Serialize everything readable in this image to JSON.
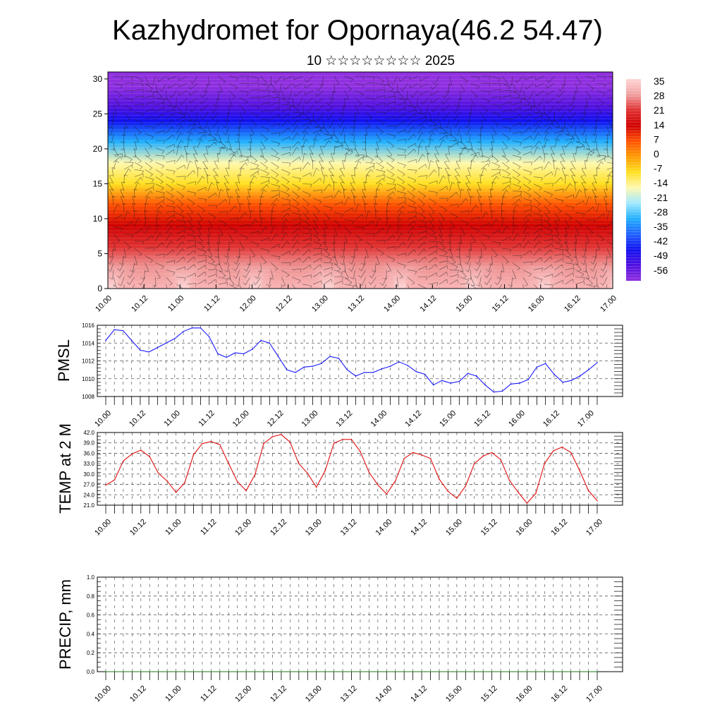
{
  "title": "Kazhydromet for Opornaya(46.2 54.47)",
  "subtitle": "10 ☆☆☆☆☆☆☆☆ 2025",
  "time_ticks": [
    "10.00",
    "10.12",
    "11.00",
    "11.12",
    "12.00",
    "12.12",
    "13.00",
    "13.12",
    "14.00",
    "14.12",
    "15.00",
    "15.12",
    "16.00",
    "16.12",
    "17.00"
  ],
  "chart_data": [
    {
      "type": "heatmap",
      "panel": "temperature cross-section with wind barbs",
      "y_ticks": [
        "0",
        "5",
        "10",
        "15",
        "20",
        "25",
        "30"
      ],
      "ylim": [
        0,
        31
      ],
      "colorbar": {
        "labels": [
          "35",
          "28",
          "21",
          "14",
          "7",
          "0",
          "-7",
          "-14",
          "-21",
          "-28",
          "-35",
          "-42",
          "-49",
          "-56"
        ],
        "stops": [
          "#ffd6d6",
          "#f0a0a0",
          "#e03030",
          "#d00000",
          "#ff5000",
          "#ff9a00",
          "#ffe020",
          "#fff8b0",
          "#a0e8ff",
          "#20b0ff",
          "#2060ff",
          "#1010f0",
          "#5010e0",
          "#9030e0"
        ]
      },
      "level_profile": [
        [
          0,
          35
        ],
        [
          3,
          30
        ],
        [
          6,
          24
        ],
        [
          9,
          15
        ],
        [
          12,
          4
        ],
        [
          15,
          -8
        ],
        [
          18,
          -18
        ],
        [
          21,
          -32
        ],
        [
          24,
          -48
        ],
        [
          26,
          -55
        ],
        [
          29,
          -60
        ],
        [
          31,
          -62
        ]
      ]
    },
    {
      "type": "line",
      "ylabel": "PMSL",
      "ylim": [
        1008,
        1016
      ],
      "y_ticks": [
        "1016",
        "1014",
        "1012",
        "1010",
        "1008"
      ],
      "series": [
        {
          "color": "#1a1aff",
          "values": [
            1014.3,
            1015.5,
            1015.4,
            1014.3,
            1013.2,
            1013.0,
            1013.5,
            1014.0,
            1014.5,
            1015.3,
            1015.7,
            1015.7,
            1014.7,
            1012.8,
            1012.4,
            1012.9,
            1012.8,
            1013.3,
            1014.3,
            1014.0,
            1012.5,
            1011.0,
            1010.7,
            1011.3,
            1011.4,
            1011.7,
            1012.5,
            1012.3,
            1011.0,
            1010.3,
            1010.7,
            1010.7,
            1011.1,
            1011.4,
            1011.9,
            1011.5,
            1010.8,
            1010.5,
            1009.3,
            1009.8,
            1009.5,
            1009.7,
            1010.6,
            1010.3,
            1009.3,
            1008.5,
            1008.6,
            1009.4,
            1009.5,
            1009.9,
            1011.3,
            1011.7,
            1010.5,
            1009.6,
            1009.8,
            1010.3,
            1011.0,
            1011.8
          ]
        }
      ]
    },
    {
      "type": "line",
      "ylabel": "TEMP at 2 M",
      "ylim": [
        21.0,
        42.0
      ],
      "y_ticks": [
        "42.0",
        "39.0",
        "36.0",
        "33.0",
        "30.0",
        "27.0",
        "24.0",
        "21.0"
      ],
      "series": [
        {
          "color": "#e01010",
          "values": [
            26.8,
            28.3,
            33.8,
            35.8,
            36.9,
            35.0,
            30.2,
            28.0,
            24.7,
            27.5,
            35.6,
            38.8,
            39.4,
            38.5,
            33.0,
            27.8,
            25.2,
            29.8,
            38.8,
            40.8,
            41.4,
            39.2,
            33.0,
            30.2,
            26.2,
            31.0,
            38.9,
            40.0,
            40.0,
            36.5,
            30.5,
            26.9,
            24.2,
            28.0,
            34.5,
            36.2,
            35.5,
            34.5,
            28.5,
            25.0,
            23.0,
            26.5,
            33.0,
            35.2,
            36.2,
            34.2,
            28.2,
            24.7,
            21.6,
            24.4,
            33.0,
            36.7,
            37.8,
            36.2,
            31.0,
            25.2,
            22.3
          ]
        }
      ]
    },
    {
      "type": "line",
      "ylabel": "PRECIP, mm",
      "ylim": [
        0.0,
        1.0
      ],
      "y_ticks": [
        "1.0",
        "0.8",
        "0.6",
        "0.4",
        "0.2",
        "0.0"
      ],
      "series": [
        {
          "color": "#1a7a1a",
          "values": [
            0,
            0,
            0,
            0,
            0,
            0,
            0,
            0,
            0,
            0,
            0,
            0,
            0,
            0,
            0,
            0,
            0,
            0,
            0,
            0,
            0,
            0,
            0,
            0,
            0,
            0,
            0,
            0,
            0,
            0,
            0,
            0,
            0,
            0,
            0,
            0,
            0,
            0,
            0,
            0,
            0,
            0,
            0,
            0,
            0,
            0,
            0,
            0,
            0,
            0,
            0,
            0,
            0,
            0,
            0,
            0,
            0
          ]
        }
      ]
    }
  ]
}
